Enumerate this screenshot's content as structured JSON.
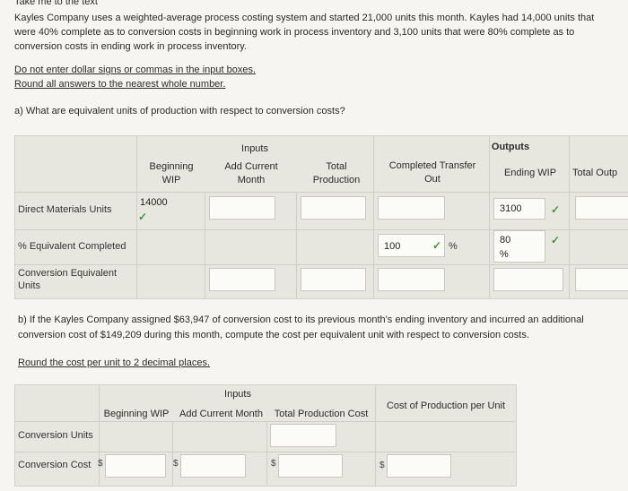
{
  "top_link": "Take me to the text",
  "problem": {
    "line1": "Kayles Company uses a weighted-average process costing system and started 21,000 units this month. Kayles had 14,000 units that",
    "line2": "were 40% complete as to conversion costs in beginning work in process inventory and 3,100 units that were 80% complete as to",
    "line3": "conversion costs in ending work in process inventory."
  },
  "instructions": {
    "line1": "Do not enter dollar signs or commas in the input boxes.",
    "line2": "Round all answers to the nearest whole number."
  },
  "question_a": "a) What are equivalent units of production with respect to conversion costs?",
  "table_a": {
    "group_inputs": "Inputs",
    "group_outputs": "Outputs",
    "headers": {
      "beginning_wip_1": "Beginning",
      "beginning_wip_2": "WIP",
      "add_current_1": "Add Current",
      "add_current_2": "Month",
      "total_production_1": "Total",
      "total_production_2": "Production",
      "completed_transfer_1": "Completed Transfer",
      "completed_transfer_2": "Out",
      "ending_wip": "Ending WIP",
      "total_output": "Total Outp"
    },
    "rows": {
      "direct_materials": "Direct Materials Units",
      "pct_equivalent": "% Equivalent Completed",
      "conversion_equiv_1": "Conversion Equivalent",
      "conversion_equiv_2": "Units"
    },
    "values": {
      "dm_beginning_wip": "14000",
      "dm_ending_wip": "3100",
      "pct_completed_transfer": "100",
      "pct_completed_unit": "%",
      "pct_ending_wip": "80",
      "pct_ending_unit": "%"
    }
  },
  "question_b": {
    "line1": "b) If the Kayles Company assigned $63,947 of conversion cost to its previous month's ending inventory and incurred an additional",
    "line2": "conversion cost of $149,209 during this month, compute the cost per equivalent unit with respect to conversion costs."
  },
  "instruction_b": "Round the cost per unit to 2 decimal places.",
  "table_b": {
    "group_inputs": "Inputs",
    "headers": {
      "beginning_wip": "Beginning WIP",
      "add_current": "Add Current Month",
      "total_production": "Total Production Cost",
      "cost_per_unit": "Cost of Production per Unit"
    },
    "rows": {
      "conversion_units": "Conversion Units",
      "conversion_cost": "Conversion Cost"
    },
    "currency": "$"
  },
  "colors": {
    "check": "#3a9a38",
    "panel": "#e7e6df"
  }
}
